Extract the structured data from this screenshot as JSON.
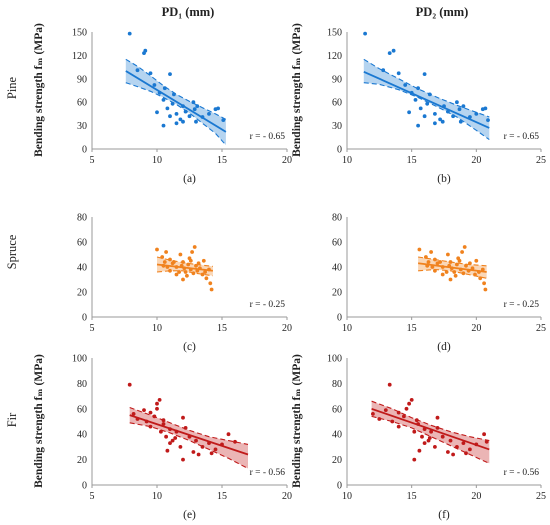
{
  "figure": {
    "column_titles": [
      "PD₁ (mm)",
      "PD₂ (mm)"
    ],
    "row_labels": [
      "Pine",
      "Spruce",
      "Fir"
    ],
    "y_axis_label": "Bending strength fₘ (MPa)"
  },
  "colors": {
    "Pine": "#1a78d1",
    "Spruce": "#f0821e",
    "Fir": "#c01a1a"
  },
  "chart_data": [
    {
      "id": "a",
      "type": "scatter",
      "row": "Pine",
      "panel_label": "(a)",
      "xlim": [
        5,
        20
      ],
      "xticks": [
        5,
        10,
        15,
        20
      ],
      "ylim": [
        0,
        150
      ],
      "yticks": [
        0,
        30,
        60,
        90,
        120,
        150
      ],
      "r_text": "r = - 0.65",
      "fit": {
        "x": [
          7.6,
          15.3
        ],
        "y": [
          100,
          22
        ]
      },
      "band_upper": {
        "x": [
          7.6,
          8.5,
          9.5,
          10.5,
          11.5,
          12.5,
          13.5,
          14.5,
          15.3
        ],
        "y": [
          115,
          106,
          94,
          81,
          70,
          61,
          53,
          45,
          38
        ]
      },
      "band_lower": {
        "x": [
          7.6,
          8.5,
          9.5,
          10.5,
          11.5,
          12.5,
          13.5,
          14.5,
          15.3
        ],
        "y": [
          85,
          80,
          74,
          66,
          57,
          46,
          33,
          20,
          5
        ]
      },
      "points": [
        [
          7.9,
          148
        ],
        [
          9.0,
          123
        ],
        [
          9.1,
          126
        ],
        [
          8.5,
          101
        ],
        [
          9.5,
          97
        ],
        [
          9.8,
          82
        ],
        [
          10.2,
          72
        ],
        [
          10.6,
          78
        ],
        [
          11.0,
          96
        ],
        [
          10.5,
          63
        ],
        [
          11.3,
          70
        ],
        [
          11.2,
          58
        ],
        [
          10.8,
          52
        ],
        [
          10.0,
          47
        ],
        [
          11.5,
          45
        ],
        [
          12.0,
          55
        ],
        [
          12.2,
          48
        ],
        [
          11.8,
          38
        ],
        [
          12.5,
          42
        ],
        [
          12.9,
          51
        ],
        [
          13.1,
          55
        ],
        [
          13.5,
          41
        ],
        [
          14.0,
          45
        ],
        [
          14.5,
          51
        ],
        [
          14.7,
          52
        ],
        [
          15.1,
          37
        ],
        [
          13.0,
          35
        ],
        [
          12.0,
          35
        ],
        [
          11.5,
          33
        ],
        [
          10.5,
          30
        ],
        [
          11.0,
          42
        ],
        [
          12.8,
          60
        ]
      ]
    },
    {
      "id": "b",
      "type": "scatter",
      "row": "Pine",
      "panel_label": "(b)",
      "xlim": [
        10,
        25
      ],
      "xticks": [
        10,
        15,
        20,
        25
      ],
      "ylim": [
        0,
        150
      ],
      "yticks": [
        0,
        30,
        60,
        90,
        120,
        150
      ],
      "r_text": "r = - 0.65",
      "fit": {
        "x": [
          11.3,
          21
        ],
        "y": [
          99,
          27
        ]
      },
      "band_upper": {
        "x": [
          11.3,
          12.5,
          14,
          15.5,
          17,
          18.5,
          20,
          21
        ],
        "y": [
          115,
          103,
          90,
          77,
          66,
          56,
          47,
          41
        ]
      },
      "band_lower": {
        "x": [
          11.3,
          12.5,
          14,
          15.5,
          17,
          18.5,
          20,
          21
        ],
        "y": [
          85,
          83,
          76,
          66,
          54,
          41,
          24,
          12
        ]
      },
      "points": [
        [
          11.4,
          148
        ],
        [
          13.3,
          123
        ],
        [
          13.6,
          126
        ],
        [
          12.8,
          101
        ],
        [
          14.0,
          97
        ],
        [
          14.5,
          82
        ],
        [
          15.0,
          72
        ],
        [
          15.5,
          78
        ],
        [
          16.0,
          96
        ],
        [
          15.3,
          63
        ],
        [
          16.4,
          70
        ],
        [
          16.2,
          58
        ],
        [
          15.7,
          52
        ],
        [
          14.8,
          47
        ],
        [
          16.8,
          45
        ],
        [
          17.5,
          55
        ],
        [
          17.8,
          48
        ],
        [
          17.2,
          38
        ],
        [
          18.2,
          42
        ],
        [
          18.7,
          51
        ],
        [
          19.0,
          55
        ],
        [
          19.5,
          41
        ],
        [
          20.0,
          45
        ],
        [
          20.5,
          51
        ],
        [
          20.7,
          52
        ],
        [
          20.9,
          37
        ],
        [
          18.8,
          35
        ],
        [
          17.4,
          35
        ],
        [
          16.8,
          33
        ],
        [
          15.5,
          30
        ],
        [
          16.0,
          42
        ],
        [
          18.5,
          60
        ]
      ]
    },
    {
      "id": "c",
      "type": "scatter",
      "row": "Spruce",
      "panel_label": "(c)",
      "xlim": [
        5,
        20
      ],
      "xticks": [
        5,
        10,
        15,
        20
      ],
      "ylim": [
        0,
        80
      ],
      "yticks": [
        0,
        20,
        40,
        60,
        80
      ],
      "r_text": "r = - 0.25",
      "fit": {
        "x": [
          10,
          14.3
        ],
        "y": [
          42,
          37
        ]
      },
      "band_upper": {
        "x": [
          10,
          11,
          12,
          13,
          14.3
        ],
        "y": [
          48,
          45.5,
          43.5,
          42,
          40.5
        ]
      },
      "band_lower": {
        "x": [
          10,
          11,
          12,
          13,
          14.3
        ],
        "y": [
          36,
          37,
          37,
          35,
          33
        ]
      },
      "points": [
        [
          10.0,
          54
        ],
        [
          10.4,
          48
        ],
        [
          10.7,
          52
        ],
        [
          11.0,
          46
        ],
        [
          11.2,
          43
        ],
        [
          11.5,
          40
        ],
        [
          11.8,
          50
        ],
        [
          12.0,
          44
        ],
        [
          12.2,
          36
        ],
        [
          12.4,
          42
        ],
        [
          12.5,
          47
        ],
        [
          12.6,
          38
        ],
        [
          12.8,
          35
        ],
        [
          13.0,
          41
        ],
        [
          13.2,
          43
        ],
        [
          13.3,
          39
        ],
        [
          13.5,
          34
        ],
        [
          13.6,
          45
        ],
        [
          13.8,
          31
        ],
        [
          14.0,
          38
        ],
        [
          14.1,
          27
        ],
        [
          14.2,
          22
        ],
        [
          12.0,
          30
        ],
        [
          11.5,
          34
        ],
        [
          11.0,
          37
        ],
        [
          10.5,
          41
        ],
        [
          12.9,
          56
        ],
        [
          12.7,
          52
        ],
        [
          11.7,
          36
        ],
        [
          12.3,
          33
        ],
        [
          11.3,
          44
        ],
        [
          10.8,
          40
        ],
        [
          13.1,
          37
        ],
        [
          12.1,
          39
        ],
        [
          11.9,
          41
        ],
        [
          13.7,
          36
        ],
        [
          10.6,
          44
        ],
        [
          12.6,
          45
        ]
      ]
    },
    {
      "id": "d",
      "type": "scatter",
      "row": "Spruce",
      "panel_label": "(d)",
      "xlim": [
        10,
        25
      ],
      "xticks": [
        10,
        15,
        20,
        25
      ],
      "ylim": [
        0,
        80
      ],
      "yticks": [
        0,
        20,
        40,
        60,
        80
      ],
      "r_text": "r = - 0.25",
      "fit": {
        "x": [
          15.5,
          20.8
        ],
        "y": [
          43,
          36
        ]
      },
      "band_upper": {
        "x": [
          15.5,
          16.8,
          18,
          19.4,
          20.8
        ],
        "y": [
          48,
          46,
          44,
          42,
          41
        ]
      },
      "band_lower": {
        "x": [
          15.5,
          16.8,
          18,
          19.4,
          20.8
        ],
        "y": [
          37,
          38,
          37,
          34,
          31
        ]
      },
      "points": [
        [
          15.6,
          54
        ],
        [
          16.1,
          48
        ],
        [
          16.5,
          52
        ],
        [
          16.8,
          46
        ],
        [
          17.0,
          43
        ],
        [
          17.4,
          40
        ],
        [
          17.8,
          50
        ],
        [
          18.0,
          44
        ],
        [
          18.3,
          36
        ],
        [
          18.5,
          42
        ],
        [
          18.6,
          47
        ],
        [
          18.8,
          38
        ],
        [
          19.0,
          35
        ],
        [
          19.2,
          41
        ],
        [
          19.5,
          43
        ],
        [
          19.7,
          39
        ],
        [
          19.9,
          34
        ],
        [
          20.0,
          45
        ],
        [
          20.3,
          31
        ],
        [
          20.5,
          38
        ],
        [
          20.6,
          27
        ],
        [
          20.7,
          22
        ],
        [
          18.0,
          30
        ],
        [
          17.4,
          34
        ],
        [
          16.8,
          37
        ],
        [
          16.2,
          41
        ],
        [
          19.1,
          56
        ],
        [
          18.9,
          52
        ],
        [
          17.7,
          36
        ],
        [
          18.4,
          33
        ],
        [
          17.2,
          44
        ],
        [
          16.6,
          40
        ],
        [
          19.4,
          37
        ],
        [
          18.1,
          39
        ],
        [
          17.9,
          41
        ],
        [
          20.2,
          36
        ],
        [
          16.3,
          44
        ],
        [
          18.7,
          45
        ]
      ]
    },
    {
      "id": "e",
      "type": "scatter",
      "row": "Fir",
      "panel_label": "(e)",
      "xlim": [
        5,
        20
      ],
      "xticks": [
        5,
        10,
        15,
        20
      ],
      "ylim": [
        0,
        100
      ],
      "yticks": [
        0,
        20,
        40,
        60,
        80,
        100
      ],
      "r_text": "r = - 0.56",
      "fit": {
        "x": [
          7.9,
          17
        ],
        "y": [
          55,
          24
        ]
      },
      "band_upper": {
        "x": [
          7.9,
          9.5,
          11,
          12.5,
          14,
          15.5,
          17
        ],
        "y": [
          61,
          55,
          49,
          43,
          38,
          35,
          32
        ]
      },
      "band_lower": {
        "x": [
          7.9,
          9.5,
          11,
          12.5,
          14,
          15.5,
          17
        ],
        "y": [
          49,
          46,
          41,
          35,
          28,
          21,
          13
        ]
      },
      "points": [
        [
          7.9,
          79
        ],
        [
          8.2,
          56
        ],
        [
          8.5,
          52
        ],
        [
          9.0,
          59
        ],
        [
          9.2,
          50
        ],
        [
          9.5,
          46
        ],
        [
          9.8,
          54
        ],
        [
          10.0,
          64
        ],
        [
          10.2,
          67
        ],
        [
          10.3,
          42
        ],
        [
          10.5,
          48
        ],
        [
          10.7,
          38
        ],
        [
          11.0,
          44
        ],
        [
          11.2,
          35
        ],
        [
          11.5,
          42
        ],
        [
          11.8,
          30
        ],
        [
          12.0,
          20
        ],
        [
          12.2,
          45
        ],
        [
          12.5,
          38
        ],
        [
          12.8,
          26
        ],
        [
          13.0,
          35
        ],
        [
          13.5,
          30
        ],
        [
          14.0,
          33
        ],
        [
          14.5,
          28
        ],
        [
          15.0,
          32
        ],
        [
          15.5,
          40
        ],
        [
          16.0,
          34
        ],
        [
          10.0,
          60
        ],
        [
          9.5,
          57
        ],
        [
          10.5,
          51
        ],
        [
          11.0,
          33
        ],
        [
          12.0,
          53
        ],
        [
          13.2,
          24
        ],
        [
          10.8,
          27
        ],
        [
          11.4,
          37
        ],
        [
          14.2,
          25
        ]
      ]
    },
    {
      "id": "f",
      "type": "scatter",
      "row": "Fir",
      "panel_label": "(f)",
      "xlim": [
        10,
        25
      ],
      "xticks": [
        10,
        15,
        20,
        25
      ],
      "ylim": [
        0,
        100
      ],
      "yticks": [
        0,
        20,
        40,
        60,
        80,
        100
      ],
      "r_text": "r = - 0.56",
      "fit": {
        "x": [
          11.9,
          21
        ],
        "y": [
          60,
          28
        ]
      },
      "band_upper": {
        "x": [
          11.9,
          13.5,
          15,
          16.5,
          18,
          19.5,
          21
        ],
        "y": [
          66,
          60,
          53,
          47,
          42,
          38,
          35
        ]
      },
      "band_lower": {
        "x": [
          11.9,
          13.5,
          15,
          16.5,
          18,
          19.5,
          21
        ],
        "y": [
          54,
          50,
          45,
          38,
          31,
          24,
          17
        ]
      },
      "points": [
        [
          13.3,
          79
        ],
        [
          12.0,
          56
        ],
        [
          12.5,
          52
        ],
        [
          13.0,
          59
        ],
        [
          13.5,
          50
        ],
        [
          14.0,
          46
        ],
        [
          14.4,
          54
        ],
        [
          14.8,
          64
        ],
        [
          15.0,
          67
        ],
        [
          15.2,
          42
        ],
        [
          15.5,
          48
        ],
        [
          15.8,
          38
        ],
        [
          16.0,
          44
        ],
        [
          16.3,
          35
        ],
        [
          16.5,
          42
        ],
        [
          16.8,
          30
        ],
        [
          15.2,
          20
        ],
        [
          17.0,
          45
        ],
        [
          17.4,
          38
        ],
        [
          17.8,
          26
        ],
        [
          18.0,
          35
        ],
        [
          18.5,
          30
        ],
        [
          19.0,
          33
        ],
        [
          19.5,
          28
        ],
        [
          20.0,
          32
        ],
        [
          20.6,
          40
        ],
        [
          20.8,
          34
        ],
        [
          14.6,
          60
        ],
        [
          14.0,
          57
        ],
        [
          15.4,
          51
        ],
        [
          16.0,
          33
        ],
        [
          17.0,
          53
        ],
        [
          18.2,
          24
        ],
        [
          15.6,
          27
        ],
        [
          16.4,
          37
        ],
        [
          19.2,
          25
        ]
      ]
    }
  ]
}
